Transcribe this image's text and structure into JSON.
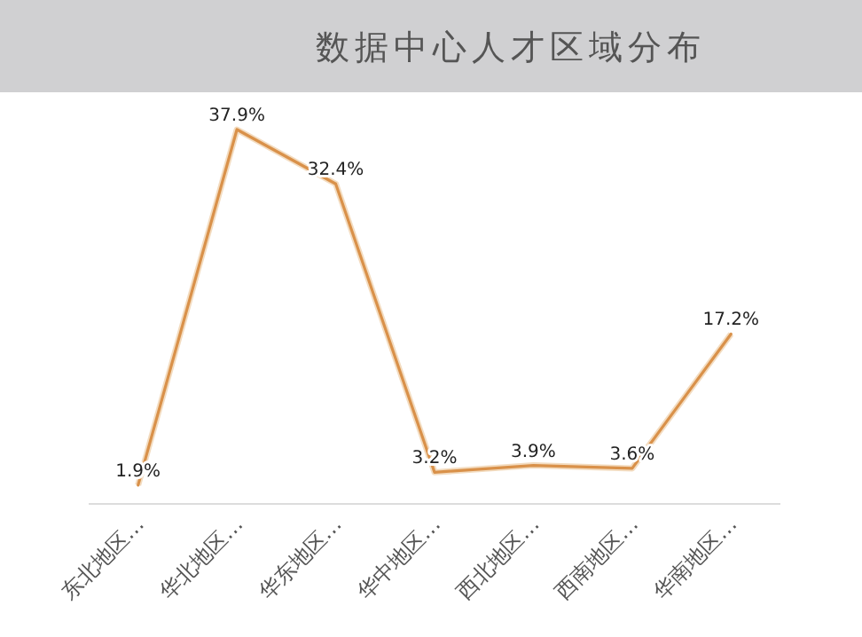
{
  "chart_data": {
    "type": "line",
    "title": "数据中心人才区域分布",
    "categories": [
      "东北地区…",
      "华北地区…",
      "华东地区…",
      "华中地区…",
      "西北地区…",
      "西南地区…",
      "华南地区…"
    ],
    "series": [
      {
        "color": "#d9914a",
        "values": [
          1.9,
          37.9,
          32.4,
          3.2,
          3.9,
          3.6,
          17.2
        ],
        "value_labels": [
          "1.9%",
          "37.9%",
          "32.4%",
          "3.2%",
          "3.9%",
          "3.6%",
          "17.2%"
        ]
      }
    ],
    "marker": "none",
    "line_style": "solid"
  }
}
